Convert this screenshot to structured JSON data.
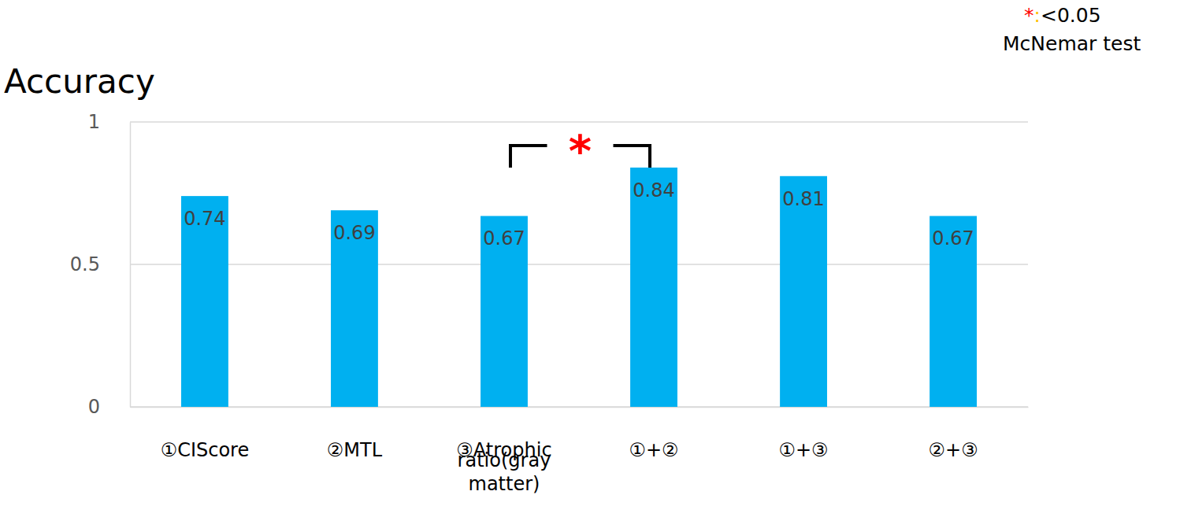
{
  "chart_data": {
    "type": "bar",
    "title": "Accuracy",
    "categories": [
      "①CIScore",
      "②MTL",
      "③Atrophic ratio(gray matter)",
      "①+②",
      "①+③",
      "②+③"
    ],
    "values": [
      0.74,
      0.69,
      0.67,
      0.84,
      0.81,
      0.67
    ],
    "color": "#00b0f0",
    "ylim": [
      0,
      1
    ],
    "yticks": [
      0,
      0.5,
      1
    ],
    "grid": true,
    "data_labels": true,
    "annotations": [
      {
        "text": "*",
        "between": [
          2,
          3
        ]
      }
    ],
    "significance_key": {
      "symbol": "*",
      "separator": ":",
      "threshold": "<0.05",
      "test": "McNemar test"
    }
  }
}
